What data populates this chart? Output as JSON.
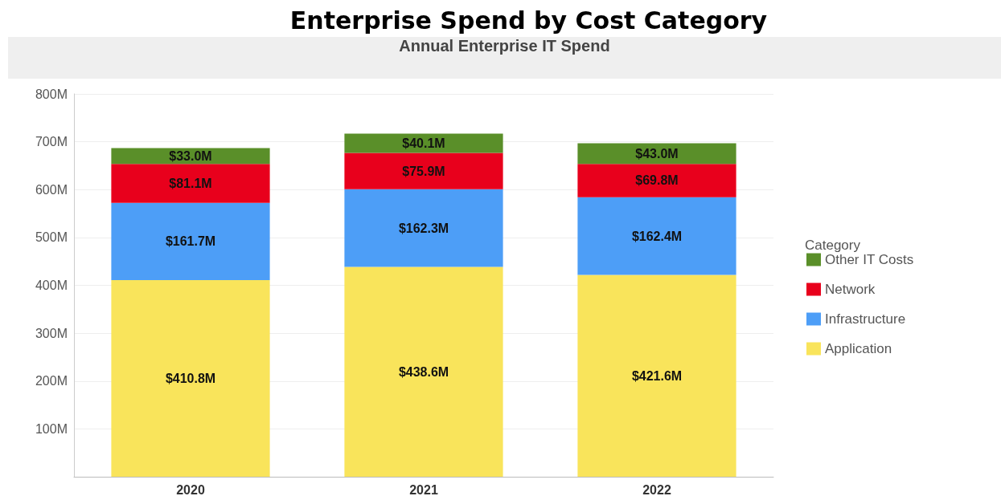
{
  "chart_data": {
    "type": "bar",
    "title": "Enterprise Spend by Cost Category",
    "subtitle": "Annual Enterprise IT Spend",
    "legend_title": "Category",
    "categories": [
      "2020",
      "2021",
      "2022"
    ],
    "stacked": true,
    "series": [
      {
        "name": "Application",
        "color": "#f9e45b",
        "values": [
          410.8,
          438.6,
          421.6
        ],
        "value_labels": [
          "$410.8M",
          "$438.6M",
          "$421.6M"
        ]
      },
      {
        "name": "Infrastructure",
        "color": "#4d9ef7",
        "values": [
          161.7,
          162.3,
          162.4
        ],
        "value_labels": [
          "$161.7M",
          "$162.3M",
          "$162.4M"
        ]
      },
      {
        "name": "Network",
        "color": "#e8001c",
        "values": [
          81.1,
          75.9,
          69.8
        ],
        "value_labels": [
          "$81.1M",
          "$75.9M",
          "$69.8M"
        ]
      },
      {
        "name": "Other IT Costs",
        "color": "#5a8f29",
        "values": [
          33.0,
          40.1,
          43.0
        ],
        "value_labels": [
          "$33.0M",
          "$40.1M",
          "$43.0M"
        ]
      }
    ],
    "ylim": [
      0,
      800
    ],
    "yticks": [
      {
        "value": 100,
        "label": "100M"
      },
      {
        "value": 200,
        "label": "200M"
      },
      {
        "value": 300,
        "label": "300M"
      },
      {
        "value": 400,
        "label": "400M"
      },
      {
        "value": 500,
        "label": "500M"
      },
      {
        "value": 600,
        "label": "600M"
      },
      {
        "value": 700,
        "label": "700M"
      },
      {
        "value": 800,
        "label": "800M"
      }
    ],
    "grid": "y",
    "legend": "right"
  }
}
